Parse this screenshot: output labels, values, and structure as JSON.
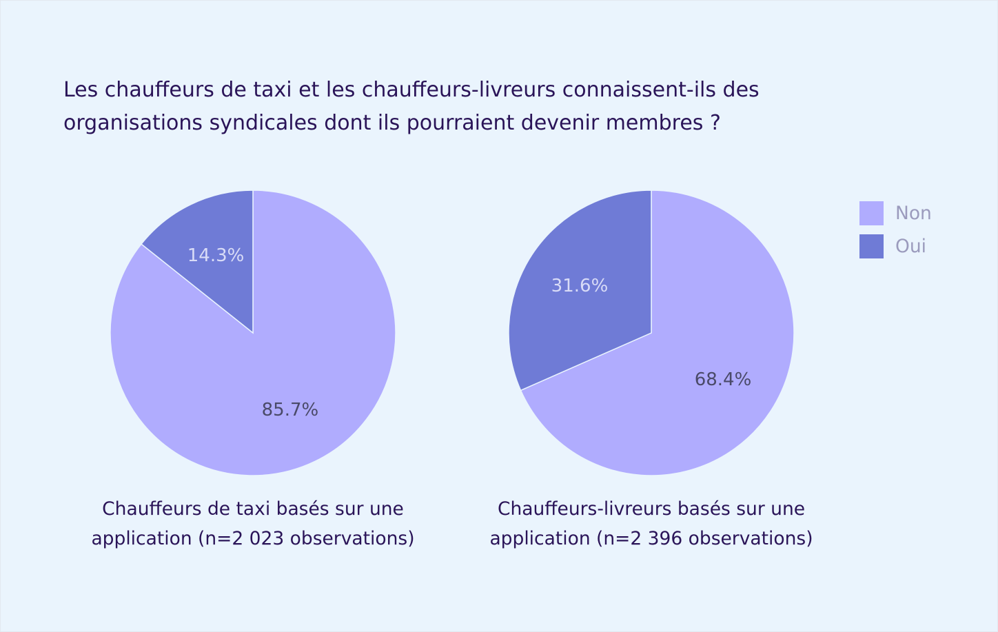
{
  "chart_data": {
    "type": "pie",
    "title_lines": [
      "Les chauffeurs de taxi et les chauffeurs-livreurs connaissent-ils des",
      "organisations syndicales dont ils pourraient devenir membres ?"
    ],
    "legend": {
      "placement": "top-right",
      "entries": [
        {
          "label": "Non",
          "color": "#b0acfe"
        },
        {
          "label": "Oui",
          "color": "#6f7bd6"
        }
      ]
    },
    "pies": [
      {
        "caption_lines": [
          "Chauffeurs de taxi basés sur une",
          "application (n=2 023 observations)"
        ],
        "slices": [
          {
            "label": "Non",
            "value": 85.7,
            "text": "85.7%",
            "color": "#b0acfe"
          },
          {
            "label": "Oui",
            "value": 14.3,
            "text": "14.3%",
            "color": "#6f7bd6"
          }
        ]
      },
      {
        "caption_lines": [
          "Chauffeurs-livreurs basés sur une",
          "application (n=2 396 observations)"
        ],
        "slices": [
          {
            "label": "Non",
            "value": 68.4,
            "text": "68.4%",
            "color": "#b0acfe"
          },
          {
            "label": "Oui",
            "value": 31.6,
            "text": "31.6%",
            "color": "#6f7bd6"
          }
        ]
      }
    ]
  }
}
